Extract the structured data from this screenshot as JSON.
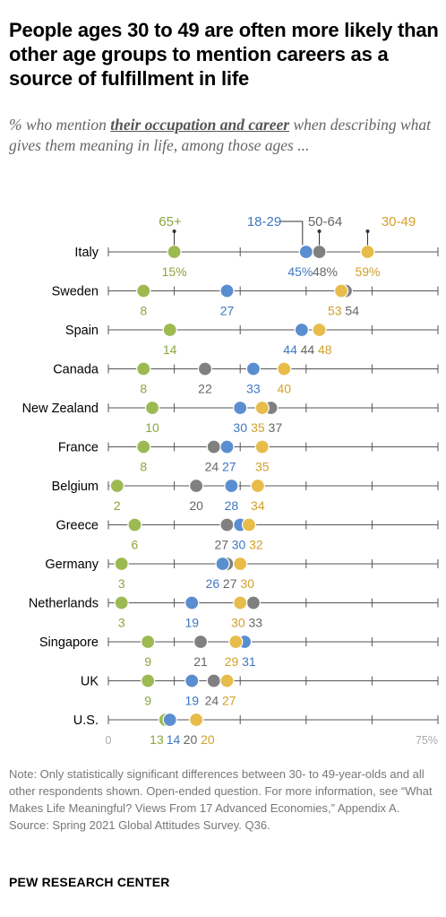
{
  "header": {
    "title": "People ages 30 to 49 are often more likely than other age groups to mention careers as a source of fulfillment in life",
    "subtitle_pre": "% who mention ",
    "subtitle_emph": "their occupation and career",
    "subtitle_post": " when describing what gives them meaning in life, among those ages ..."
  },
  "notes": {
    "note": "Note: Only statistically significant differences between 30- to 49-year-olds and all other respondents shown. Open-ended question. For more information, see “What Makes Life Meaningful? Views From 17 Advanced Economies,” Appendix A.",
    "source": "Source: Spring 2021 Global Attitudes Survey. Q36."
  },
  "branding": {
    "logo_text": "PEW RESEARCH CENTER"
  },
  "chart_data": {
    "type": "dot-plot",
    "title": "People ages 30 to 49 are often more likely than other age groups to mention careers as a source of fulfillment in life",
    "xlim": [
      0,
      75
    ],
    "axis_labels": {
      "min": "0",
      "max": "75%"
    },
    "legend_placement": "top, above Italy row",
    "categories": [
      "Italy",
      "Sweden",
      "Spain",
      "Canada",
      "New Zealand",
      "France",
      "Belgium",
      "Greece",
      "Germany",
      "Netherlands",
      "Singapore",
      "UK",
      "U.S."
    ],
    "series": [
      {
        "name": "65+",
        "key": "s65",
        "color": "#9dba52",
        "label_color": "#8aa63c"
      },
      {
        "name": "18-29",
        "key": "s18",
        "color": "#5b8ed0",
        "label_color": "#3e78c2"
      },
      {
        "name": "50-64",
        "key": "s50",
        "color": "#808080",
        "label_color": "#666666"
      },
      {
        "name": "30-49",
        "key": "s30",
        "color": "#e8bc4a",
        "label_color": "#d1a12a"
      }
    ],
    "rows": [
      {
        "country": "Italy",
        "values": {
          "s65": 15,
          "s18": 45,
          "s50": 48,
          "s30": 59
        },
        "labels": {
          "s65": "15%",
          "s18": "45%",
          "s50": "48%",
          "s30": "59%"
        }
      },
      {
        "country": "Sweden",
        "values": {
          "s65": 8,
          "s18": 27,
          "s50": 54,
          "s30": 53
        },
        "labels": {
          "s65": "8",
          "s18": "27",
          "s50": "54",
          "s30": "53"
        }
      },
      {
        "country": "Spain",
        "values": {
          "s65": 14,
          "s18": 44,
          "s50": 44,
          "s30": 48
        },
        "labels": {
          "s65": "14",
          "s18": "44",
          "s50": "44",
          "s30": "48"
        }
      },
      {
        "country": "Canada",
        "values": {
          "s65": 8,
          "s50": 22,
          "s18": 33,
          "s30": 40
        },
        "labels": {
          "s65": "8",
          "s50": "22",
          "s18": "33",
          "s30": "40"
        }
      },
      {
        "country": "New Zealand",
        "values": {
          "s65": 10,
          "s18": 30,
          "s30": 35,
          "s50": 37
        },
        "labels": {
          "s65": "10",
          "s18": "30",
          "s30": "35",
          "s50": "37"
        }
      },
      {
        "country": "France",
        "values": {
          "s65": 8,
          "s50": 24,
          "s18": 27,
          "s30": 35
        },
        "labels": {
          "s65": "8",
          "s50": "24",
          "s18": "27",
          "s30": "35"
        }
      },
      {
        "country": "Belgium",
        "values": {
          "s65": 2,
          "s50": 20,
          "s18": 28,
          "s30": 34
        },
        "labels": {
          "s65": "2",
          "s50": "20",
          "s18": "28",
          "s30": "34"
        }
      },
      {
        "country": "Greece",
        "values": {
          "s65": 6,
          "s50": 27,
          "s18": 30,
          "s30": 32
        },
        "labels": {
          "s65": "6",
          "s50": "27",
          "s18": "30",
          "s30": "32"
        }
      },
      {
        "country": "Germany",
        "values": {
          "s65": 3,
          "s18": 26,
          "s50": 27,
          "s30": 30
        },
        "labels": {
          "s65": "3",
          "s18": "26",
          "s50": "27",
          "s30": "30"
        }
      },
      {
        "country": "Netherlands",
        "values": {
          "s65": 3,
          "s18": 19,
          "s30": 30,
          "s50": 33
        },
        "labels": {
          "s65": "3",
          "s18": "19",
          "s30": "30",
          "s50": "33"
        }
      },
      {
        "country": "Singapore",
        "values": {
          "s65": 9,
          "s50": 21,
          "s30": 29,
          "s18": 31
        },
        "labels": {
          "s65": "9",
          "s50": "21",
          "s30": "29",
          "s18": "31"
        }
      },
      {
        "country": "UK",
        "values": {
          "s65": 9,
          "s18": 19,
          "s50": 24,
          "s30": 27
        },
        "labels": {
          "s65": "9",
          "s18": "19",
          "s50": "24",
          "s30": "27"
        }
      },
      {
        "country": "U.S.",
        "values": {
          "s65": 13,
          "s18": 14,
          "s50": 20,
          "s30": 20
        },
        "labels": {
          "s65": "13",
          "s18": "14",
          "s50": "20",
          "s30": "20"
        }
      }
    ]
  }
}
